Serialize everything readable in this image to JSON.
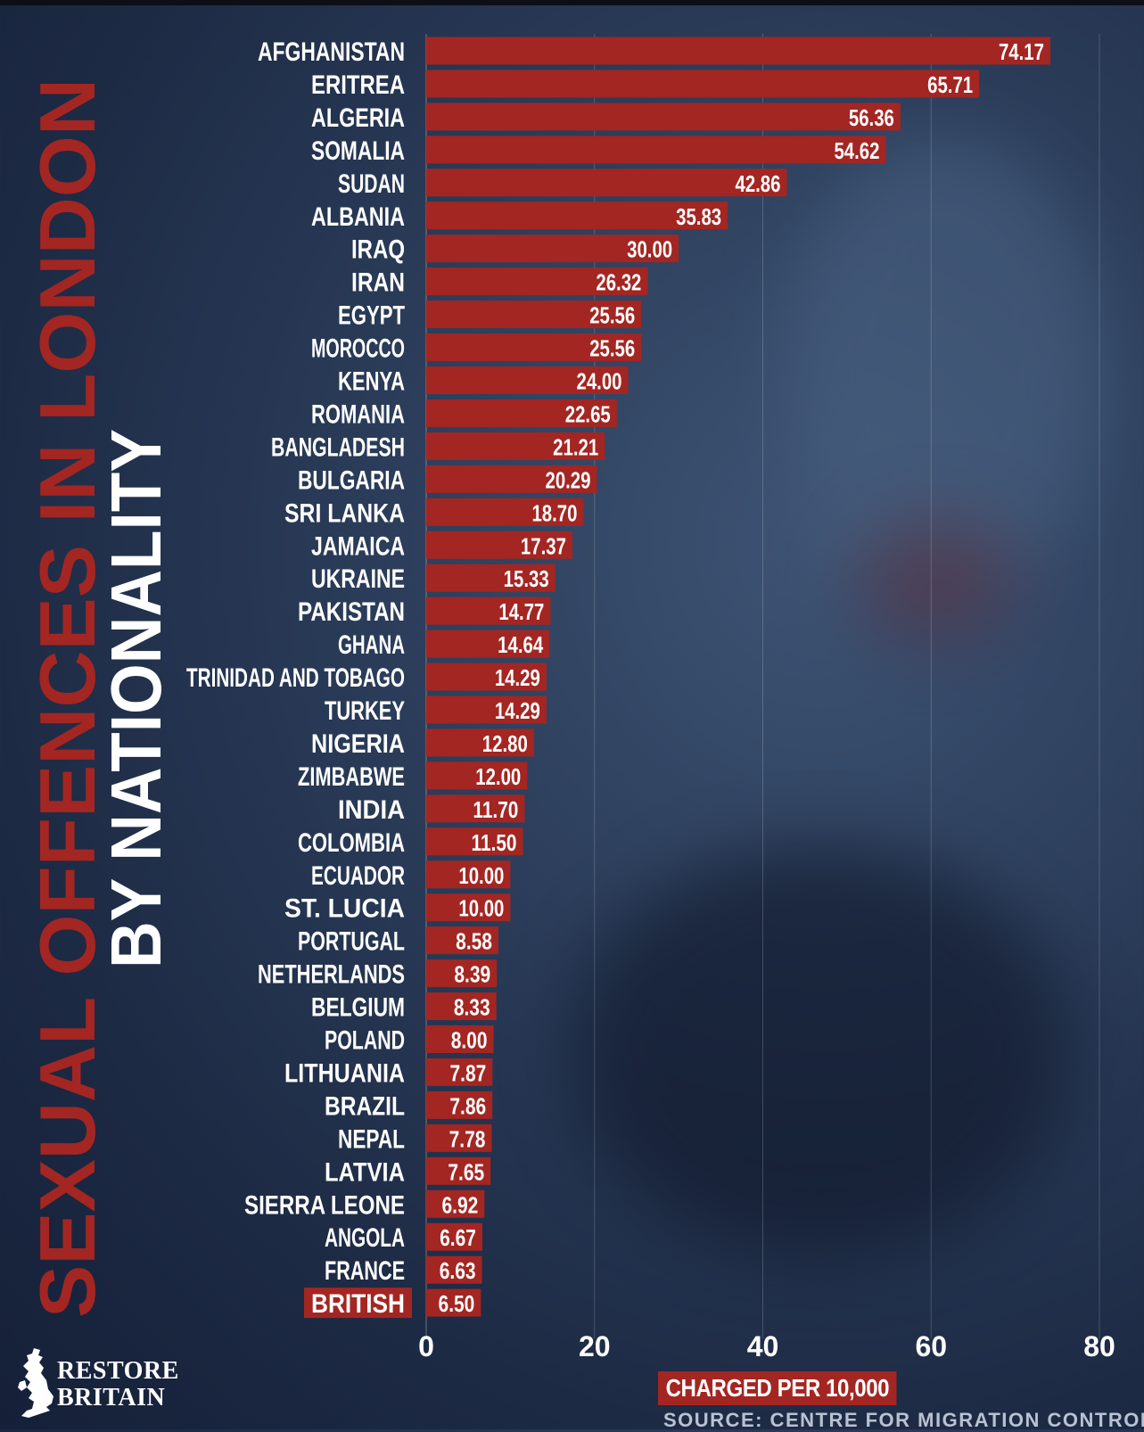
{
  "title": {
    "line1": "SEXUAL OFFENCES IN LONDON",
    "line2": "BY NATIONALITY"
  },
  "colors": {
    "bar": "#a32622",
    "highlight": "#a32622",
    "title_red": "#a32622",
    "text": "#ffffff"
  },
  "chart_data": {
    "type": "bar",
    "orientation": "horizontal",
    "categories": [
      "AFGHANISTAN",
      "ERITREA",
      "ALGERIA",
      "SOMALIA",
      "SUDAN",
      "ALBANIA",
      "IRAQ",
      "IRAN",
      "EGYPT",
      "MOROCCO",
      "KENYA",
      "ROMANIA",
      "BANGLADESH",
      "BULGARIA",
      "SRI LANKA",
      "JAMAICA",
      "UKRAINE",
      "PAKISTAN",
      "GHANA",
      "TRINIDAD AND TOBAGO",
      "TURKEY",
      "NIGERIA",
      "ZIMBABWE",
      "INDIA",
      "COLOMBIA",
      "ECUADOR",
      "ST. LUCIA",
      "PORTUGAL",
      "NETHERLANDS",
      "BELGIUM",
      "POLAND",
      "LITHUANIA",
      "BRAZIL",
      "NEPAL",
      "LATVIA",
      "SIERRA LEONE",
      "ANGOLA",
      "FRANCE",
      "BRITISH"
    ],
    "values": [
      74.17,
      65.71,
      56.36,
      54.62,
      42.86,
      35.83,
      30.0,
      26.32,
      25.56,
      25.56,
      24.0,
      22.65,
      21.21,
      20.29,
      18.7,
      17.37,
      15.33,
      14.77,
      14.64,
      14.29,
      14.29,
      12.8,
      12.0,
      11.7,
      11.5,
      10.0,
      10.0,
      8.58,
      8.39,
      8.33,
      8.0,
      7.87,
      7.86,
      7.78,
      7.65,
      6.92,
      6.67,
      6.63,
      6.5
    ],
    "value_labels": [
      "74.17",
      "65.71",
      "56.36",
      "54.62",
      "42.86",
      "35.83",
      "30.00",
      "26.32",
      "25.56",
      "25.56",
      "24.00",
      "22.65",
      "21.21",
      "20.29",
      "18.70",
      "17.37",
      "15.33",
      "14.77",
      "14.64",
      "14.29",
      "14.29",
      "12.80",
      "12.00",
      "11.70",
      "11.50",
      "10.00",
      "10.00",
      "8.58",
      "8.39",
      "8.33",
      "8.00",
      "7.87",
      "7.86",
      "7.78",
      "7.65",
      "6.92",
      "6.67",
      "6.63",
      "6.50"
    ],
    "highlighted_category": "BRITISH",
    "xlim": [
      0,
      80
    ],
    "xticks": [
      0,
      20,
      40,
      60,
      80
    ],
    "xlabel": "CHARGED PER 10,000",
    "ylabel": "",
    "grid": "vertical"
  },
  "logo": {
    "line1": "RESTORE",
    "line2": "BRITAIN",
    "icon": "uk-map-icon"
  },
  "source": "SOURCE: CENTRE FOR MIGRATION CONTROL"
}
